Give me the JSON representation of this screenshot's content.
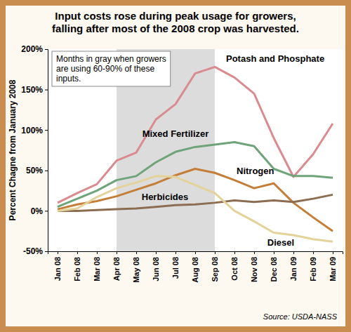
{
  "chart_data": {
    "type": "line",
    "title": "Input costs rose during peak usage for growers, falling after most of the 2008 crop was harvested.",
    "y_label": "Percent Chagne from January 2008",
    "source": "Source: USDA-NASS",
    "shaded": {
      "from": "Apr 08",
      "to": "Sep 08",
      "text": "Months in gray when growers are using 60-90% of these inputs."
    },
    "categories": [
      "Jan 08",
      "Feb 08",
      "Mar 08",
      "Apr 08",
      "May 08",
      "Jun 08",
      "Jul 08",
      "Aug 08",
      "Sep 08",
      "Oct 08",
      "Nov 08",
      "Dec 08",
      "Jan 09",
      "Feb 09",
      "Mar 09"
    ],
    "series": [
      {
        "name": "Potash and Phosphate",
        "color": "#d98b8f",
        "values": [
          10,
          22,
          33,
          62,
          72,
          113,
          132,
          170,
          178,
          165,
          145,
          90,
          42,
          70,
          108
        ]
      },
      {
        "name": "Mixed Fertilizer",
        "color": "#6fa37a",
        "values": [
          5,
          15,
          25,
          38,
          43,
          60,
          73,
          79,
          82,
          85,
          80,
          52,
          43,
          43,
          41
        ]
      },
      {
        "name": "Nitrogen",
        "color": "#c47e37",
        "values": [
          2,
          8,
          12,
          18,
          26,
          34,
          44,
          52,
          47,
          38,
          28,
          34,
          10,
          -8,
          -25
        ]
      },
      {
        "name": "Herbicides",
        "color": "#8c6d52",
        "values": [
          0,
          0,
          1,
          2,
          3,
          5,
          7,
          8,
          10,
          13,
          11,
          13,
          11,
          15,
          20
        ]
      },
      {
        "name": "Diesel",
        "color": "#e3d39a",
        "values": [
          0,
          3,
          17,
          28,
          35,
          43,
          42,
          32,
          22,
          0,
          -13,
          -27,
          -30,
          -35,
          -38
        ]
      }
    ],
    "ylim": [
      -50,
      200
    ],
    "yticks": [
      {
        "value": -50,
        "label": "-50%"
      },
      {
        "value": 0,
        "label": "0%"
      },
      {
        "value": 50,
        "label": "50%"
      },
      {
        "value": 100,
        "label": "100%"
      },
      {
        "value": 150,
        "label": "150%"
      },
      {
        "value": 200,
        "label": "200%"
      }
    ],
    "grid": false
  }
}
